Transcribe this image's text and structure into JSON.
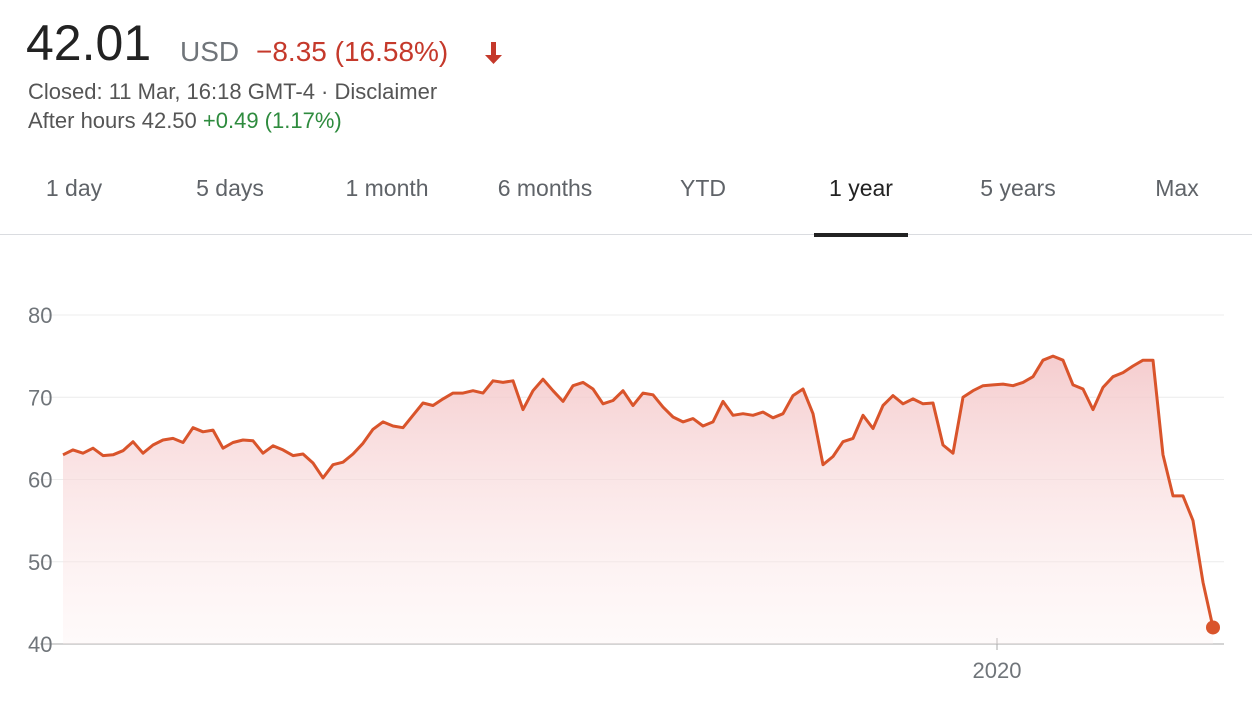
{
  "header": {
    "price": "42.01",
    "currency": "USD",
    "change": "−8.35 (16.58%)",
    "status": "Closed: 11 Mar, 16:18 GMT-4 · ",
    "disclaimer": "Disclaimer",
    "after_hours": "After hours 42.50",
    "after_hours_change": "+0.49 (1.17%)"
  },
  "tabs": {
    "items": [
      "1 day",
      "5 days",
      "1 month",
      "6 months",
      "YTD",
      "1 year",
      "5 years",
      "Max"
    ],
    "selected": 5
  },
  "chart_data": {
    "type": "line",
    "color": "#d9542b",
    "grid": true,
    "values": [
      63.0,
      63.6,
      63.2,
      63.8,
      62.9,
      63.0,
      63.5,
      64.6,
      63.2,
      64.2,
      64.8,
      65.0,
      64.5,
      66.3,
      65.8,
      66.0,
      63.8,
      64.5,
      64.8,
      64.7,
      63.2,
      64.1,
      63.6,
      62.9,
      63.1,
      62.0,
      60.2,
      61.8,
      62.1,
      63.1,
      64.4,
      66.1,
      67.0,
      66.5,
      66.3,
      67.8,
      69.3,
      69.0,
      69.8,
      70.5,
      70.5,
      70.8,
      70.5,
      72.0,
      71.8,
      72.0,
      68.5,
      70.8,
      72.2,
      70.8,
      69.5,
      71.4,
      71.8,
      71.0,
      69.2,
      69.6,
      70.8,
      69.0,
      70.5,
      70.3,
      68.8,
      67.6,
      67.0,
      67.4,
      66.5,
      67.0,
      69.5,
      67.8,
      68.0,
      67.8,
      68.2,
      67.5,
      68.0,
      70.2,
      71.0,
      68.0,
      61.8,
      62.8,
      64.6,
      65.0,
      67.8,
      66.2,
      69.0,
      70.2,
      69.2,
      69.8,
      69.2,
      69.3,
      64.2,
      63.2,
      70.0,
      70.8,
      71.4,
      71.5,
      71.6,
      71.4,
      71.8,
      72.5,
      74.5,
      75.0,
      74.5,
      71.5,
      71.0,
      68.5,
      71.2,
      72.5,
      73.0,
      73.8,
      74.5,
      74.5,
      63.0,
      58.0,
      58.0,
      55.0,
      47.5,
      42.01
    ],
    "ylim": [
      40,
      80
    ],
    "yticks": [
      40,
      50,
      60,
      70,
      80
    ],
    "xlim": [
      0,
      115
    ],
    "xticks": [
      {
        "value": 93.4,
        "label": "2020"
      }
    ]
  }
}
